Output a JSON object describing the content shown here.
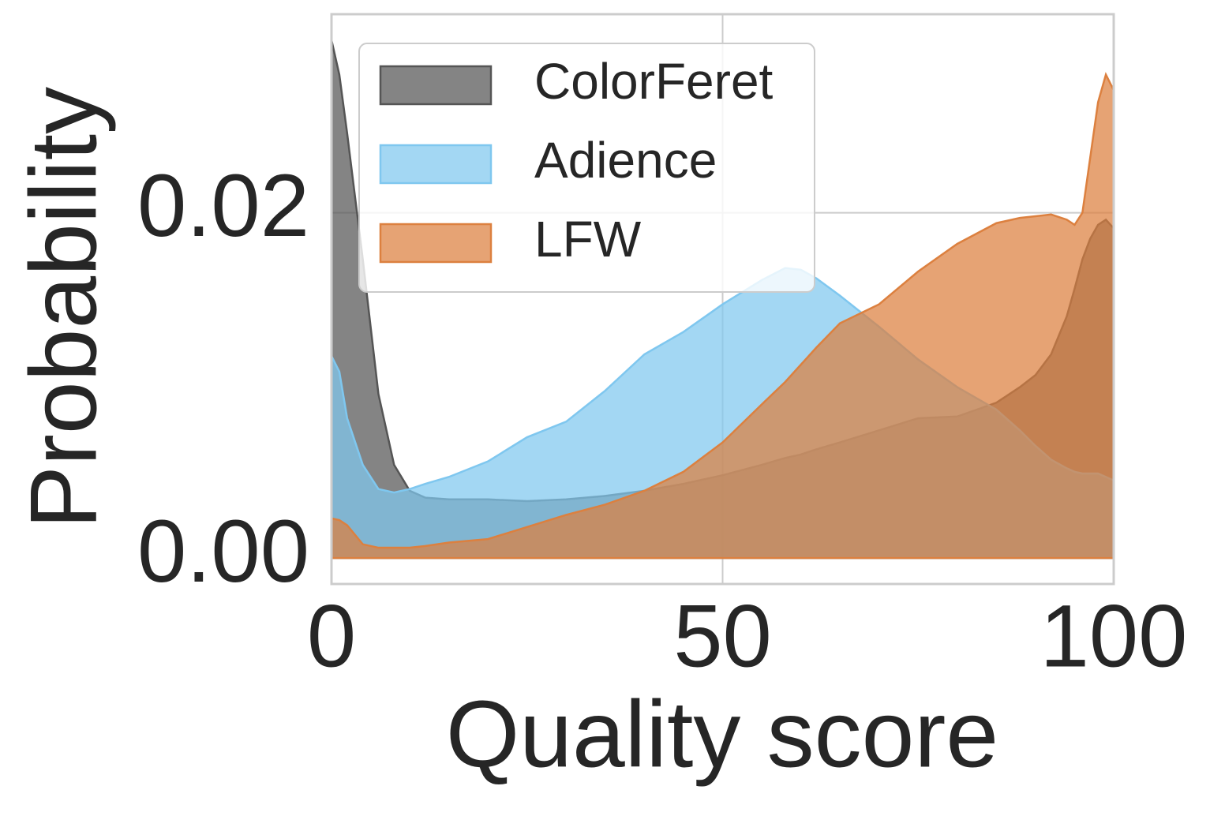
{
  "chart_data": {
    "type": "area",
    "x_label": "Quality score",
    "y_label": "Probability",
    "x": [
      0,
      1,
      2,
      4,
      6,
      8,
      10,
      12,
      15,
      20,
      25,
      30,
      35,
      40,
      45,
      50,
      55,
      58,
      60,
      62,
      65,
      70,
      75,
      80,
      85,
      88,
      90,
      92,
      94,
      95,
      96,
      97,
      98,
      99,
      100
    ],
    "series": [
      {
        "name": "ColorFeret",
        "color": "#555555",
        "values": [
          0.03,
          0.028,
          0.0246,
          0.0173,
          0.0095,
          0.0054,
          0.0039,
          0.0035,
          0.0034,
          0.0034,
          0.0033,
          0.0034,
          0.0036,
          0.0039,
          0.0043,
          0.0048,
          0.0054,
          0.0058,
          0.006,
          0.0063,
          0.0067,
          0.0074,
          0.0081,
          0.0082,
          0.009,
          0.0099,
          0.0106,
          0.0118,
          0.014,
          0.0156,
          0.0173,
          0.0185,
          0.0193,
          0.0196,
          0.0191
        ]
      },
      {
        "name": "Adience",
        "color": "#7fc7ef",
        "values": [
          0.0117,
          0.0108,
          0.0081,
          0.0054,
          0.004,
          0.0038,
          0.004,
          0.0043,
          0.0047,
          0.0056,
          0.007,
          0.0079,
          0.0097,
          0.0118,
          0.0131,
          0.0147,
          0.0161,
          0.0168,
          0.0167,
          0.0162,
          0.0152,
          0.0134,
          0.0115,
          0.0099,
          0.0086,
          0.0074,
          0.0065,
          0.0057,
          0.0052,
          0.005,
          0.0049,
          0.0049,
          0.0049,
          0.0047,
          0.0045
        ]
      },
      {
        "name": "LFW",
        "color": "#dc803f",
        "values": [
          0.0023,
          0.0022,
          0.0019,
          0.0008,
          0.0006,
          0.0006,
          0.0006,
          0.0007,
          0.0009,
          0.0011,
          0.0018,
          0.0025,
          0.0031,
          0.0039,
          0.005,
          0.0067,
          0.0089,
          0.0102,
          0.0112,
          0.0122,
          0.0136,
          0.0147,
          0.0166,
          0.0182,
          0.0194,
          0.0197,
          0.0198,
          0.0199,
          0.0196,
          0.0193,
          0.02,
          0.0232,
          0.0264,
          0.028,
          0.0271
        ]
      }
    ],
    "xlim": [
      0,
      100
    ],
    "xticks": [
      0,
      50,
      100
    ],
    "ylim": [
      -0.0015,
      0.0315
    ],
    "yticks": [
      {
        "value": 0,
        "label": "0.00"
      },
      0.02
    ],
    "grid": true,
    "legend": "upper-left"
  }
}
